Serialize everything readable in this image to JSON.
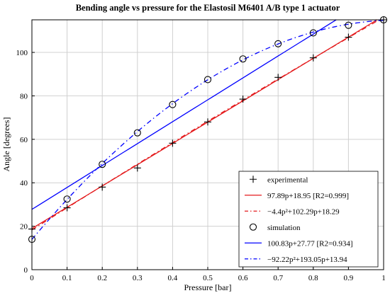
{
  "chart_data": {
    "type": "line",
    "title": "Bending angle vs pressure for the Elastosil M6401 A/B type 1 actuator",
    "xlabel": "Pressure [bar]",
    "ylabel": "Angle [degrees]",
    "xlim": [
      0,
      1
    ],
    "ylim": [
      0,
      115
    ],
    "xticks": [
      "0",
      "0.1",
      "0.2",
      "0.3",
      "0.4",
      "0.5",
      "0.6",
      "0.7",
      "0.8",
      "0.9",
      "1"
    ],
    "yticks": [
      "0",
      "20",
      "40",
      "60",
      "80",
      "100"
    ],
    "grid": true,
    "legend_position": "bottom-right",
    "series": [
      {
        "name": "experimental",
        "kind": "marker",
        "marker": "plus",
        "color": "#000000",
        "x": [
          0,
          0.1,
          0.2,
          0.3,
          0.4,
          0.5,
          0.6,
          0.7,
          0.8,
          0.9,
          1.0
        ],
        "y": [
          18.7,
          28.5,
          38.0,
          46.8,
          58.2,
          68.0,
          78.5,
          88.5,
          97.5,
          107.0,
          115.0
        ]
      },
      {
        "name": "97.89p+18.95 [R2=0.999]",
        "kind": "line",
        "style": "solid",
        "color": "#e41a1c",
        "fit": "linear",
        "coefficients": [
          97.89,
          18.95
        ]
      },
      {
        "name": "−4.4p²+102.29p+18.29",
        "kind": "line",
        "style": "dashdot",
        "color": "#e41a1c",
        "fit": "quadratic",
        "coefficients": [
          -4.4,
          102.29,
          18.29
        ]
      },
      {
        "name": "simulation",
        "kind": "marker",
        "marker": "circle",
        "color": "#000000",
        "x": [
          0,
          0.1,
          0.2,
          0.3,
          0.4,
          0.5,
          0.6,
          0.7,
          0.8,
          0.9,
          1.0
        ],
        "y": [
          14.0,
          32.5,
          48.5,
          63.0,
          76.0,
          87.5,
          97.0,
          104.0,
          109.0,
          112.5,
          115.0
        ]
      },
      {
        "name": "100.83p+27.77 [R2=0.934]",
        "kind": "line",
        "style": "solid",
        "color": "#0000ff",
        "fit": "linear",
        "coefficients": [
          100.83,
          27.77
        ]
      },
      {
        "name": "−92.22p²+193.05p+13.94",
        "kind": "line",
        "style": "dashdot",
        "color": "#0000ff",
        "fit": "quadratic",
        "coefficients": [
          -92.22,
          193.05,
          13.94
        ]
      }
    ]
  }
}
